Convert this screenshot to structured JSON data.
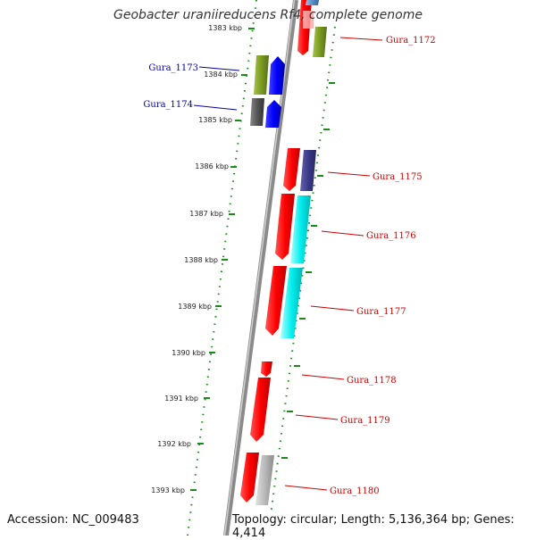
{
  "title": "Geobacter uraniireducens Rf4, complete genome",
  "footer": {
    "accession": "Accession: NC_009483",
    "summary": "Topology: circular; Length: 5,136,364 bp; Genes: 4,414"
  },
  "colors": {
    "backbone": "#8a8a8a",
    "tick": "#1a8a1a",
    "label_forward": "#cc0000",
    "label_reverse": "#0000aa"
  },
  "ticks": [
    {
      "label": "1383 kbp"
    },
    {
      "label": "1384 kbp"
    },
    {
      "label": "1385 kbp"
    },
    {
      "label": "1386 kbp"
    },
    {
      "label": "1387 kbp"
    },
    {
      "label": "1388 kbp"
    },
    {
      "label": "1389 kbp"
    },
    {
      "label": "1390 kbp"
    },
    {
      "label": "1391 kbp"
    },
    {
      "label": "1392 kbp"
    },
    {
      "label": "1393 kbp"
    }
  ],
  "genes": [
    {
      "label": "Gura_1172",
      "strand": "forward",
      "color": "#7a9a20"
    },
    {
      "label": "Gura_1173",
      "strand": "reverse",
      "color": "#7a9a20"
    },
    {
      "label": "Gura_1174",
      "strand": "reverse",
      "color": "#555555"
    },
    {
      "label": "Gura_1175",
      "strand": "forward",
      "color": "#3a3a88"
    },
    {
      "label": "Gura_1176",
      "strand": "forward",
      "color": "#00e0e0"
    },
    {
      "label": "Gura_1177",
      "strand": "forward",
      "color": "#00e0e0"
    },
    {
      "label": "Gura_1178",
      "strand": "forward",
      "color": "#ff0000"
    },
    {
      "label": "Gura_1179",
      "strand": "forward",
      "color": "#ff0000"
    },
    {
      "label": "Gura_1180",
      "strand": "forward",
      "color": "#aaaaaa"
    }
  ]
}
